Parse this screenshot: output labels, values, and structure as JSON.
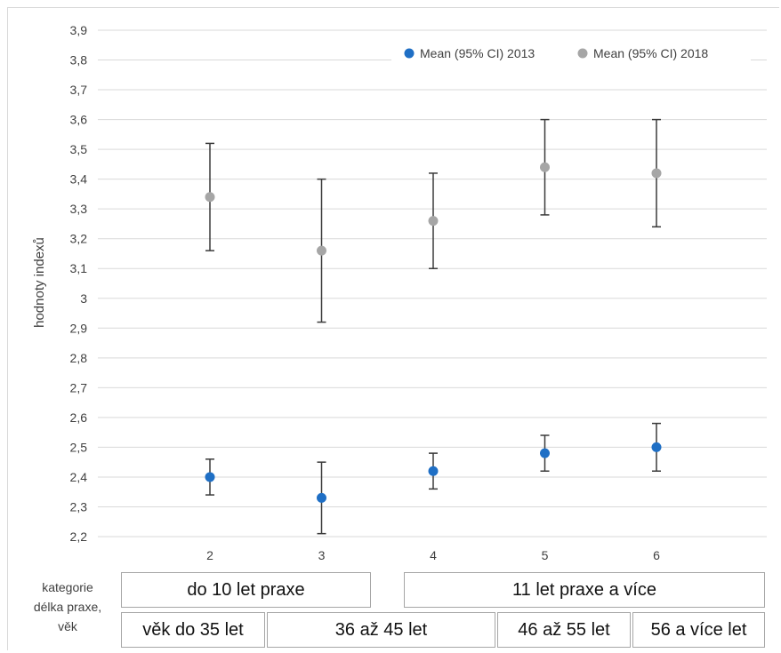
{
  "chart_data": {
    "type": "scatter",
    "title": "",
    "ylabel": "hodnoty indexů",
    "ylim": [
      2.2,
      3.9
    ],
    "yticks": [
      "2,2",
      "2,3",
      "2,4",
      "2,5",
      "2,6",
      "2,7",
      "2,8",
      "2,9",
      "3",
      "3,1",
      "3,2",
      "3,3",
      "3,4",
      "3,5",
      "3,6",
      "3,7",
      "3,8",
      "3,9"
    ],
    "xticks": [
      "2",
      "3",
      "4",
      "5",
      "6"
    ],
    "x": [
      2,
      3,
      4,
      5,
      6
    ],
    "legend_position": "top-right",
    "grid": true,
    "series": [
      {
        "name": "Mean (95% CI) 2013",
        "color": "#1f6fc5",
        "values": [
          2.4,
          2.33,
          2.42,
          2.48,
          2.5
        ],
        "ci_low": [
          2.34,
          2.21,
          2.36,
          2.42,
          2.42
        ],
        "ci_high": [
          2.46,
          2.45,
          2.48,
          2.54,
          2.58
        ]
      },
      {
        "name": "Mean (95% CI) 2018",
        "color": "#a6a6a6",
        "values": [
          3.34,
          3.16,
          3.26,
          3.44,
          3.42
        ],
        "ci_low": [
          3.16,
          2.92,
          3.1,
          3.28,
          3.24
        ],
        "ci_high": [
          3.52,
          3.4,
          3.42,
          3.6,
          3.6
        ]
      }
    ]
  },
  "category_table": {
    "row_label": [
      "kategorie",
      "délka praxe,",
      "věk"
    ],
    "experience": [
      "do 10 let praxe",
      "11 let praxe a více"
    ],
    "age": [
      "věk do 35 let",
      "36 až 45 let",
      "46 až 55 let",
      "56 a více let"
    ]
  }
}
